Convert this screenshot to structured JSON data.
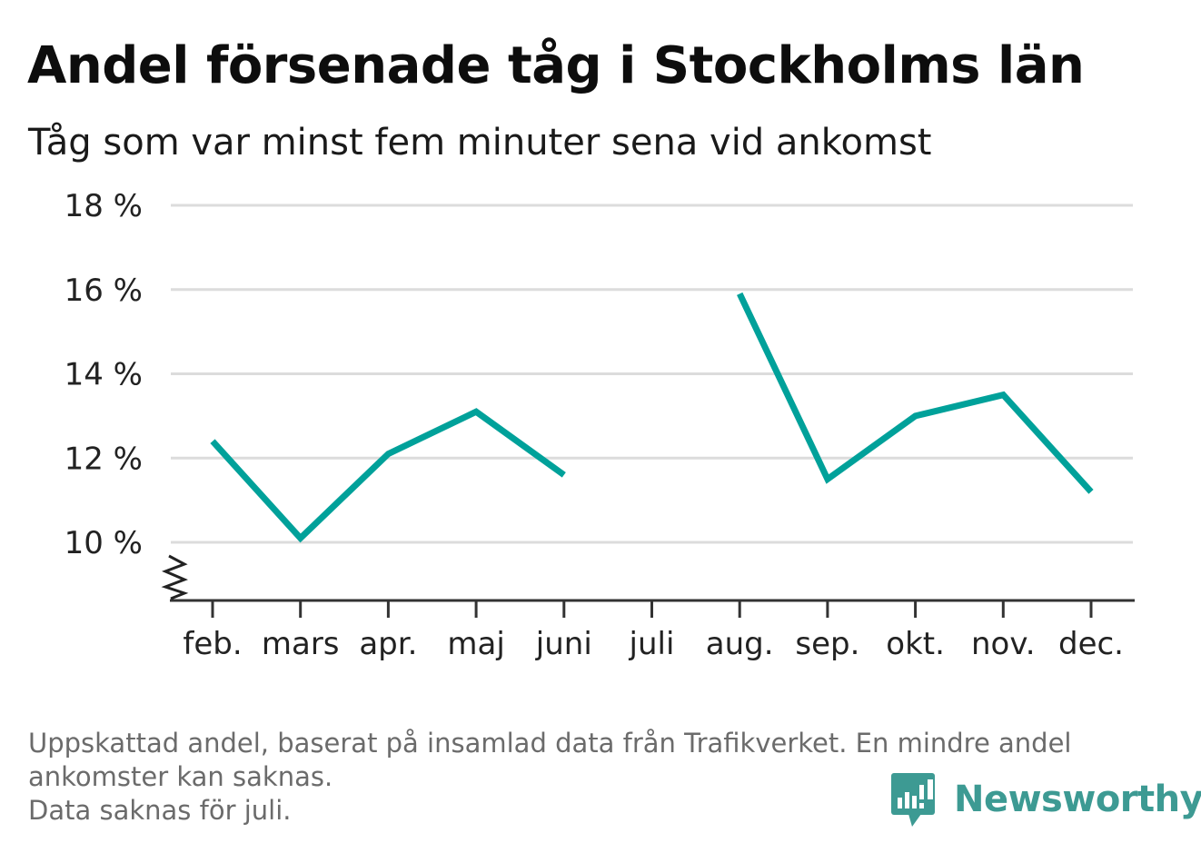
{
  "title": "Andel försenade tåg i Stockholms län",
  "subtitle": "Tåg som var minst fem minuter sena vid ankomst",
  "footer": {
    "line1": "Uppskattad andel, baserat på insamlad data från Trafikverket. En mindre andel",
    "line2": "ankomster kan saknas.",
    "line3": "Data saknas för juli."
  },
  "brand": {
    "name": "Newsworthy",
    "icon": "newsworthy-logo-icon",
    "color": "#3d9a93"
  },
  "chart_data": {
    "type": "line",
    "title": "Andel försenade tåg i Stockholms län",
    "subtitle": "Tåg som var minst fem minuter sena vid ankomst",
    "categories": [
      "feb.",
      "mars",
      "apr.",
      "maj",
      "juni",
      "juli",
      "aug.",
      "sep.",
      "okt.",
      "nov.",
      "dec."
    ],
    "series": [
      {
        "values": [
          12.4,
          10.1,
          12.1,
          13.1,
          11.6,
          null,
          15.9,
          11.5,
          13.0,
          13.5,
          11.2
        ],
        "color": "#00a19a"
      }
    ],
    "yticks": [
      10,
      12,
      14,
      16,
      18
    ],
    "ytick_labels": [
      "10 %",
      "12 %",
      "14 %",
      "16 %",
      "18 %"
    ],
    "ylim": [
      8.6,
      18
    ],
    "y_axis_break": true,
    "grid": true,
    "xlabel": "",
    "ylabel": ""
  }
}
